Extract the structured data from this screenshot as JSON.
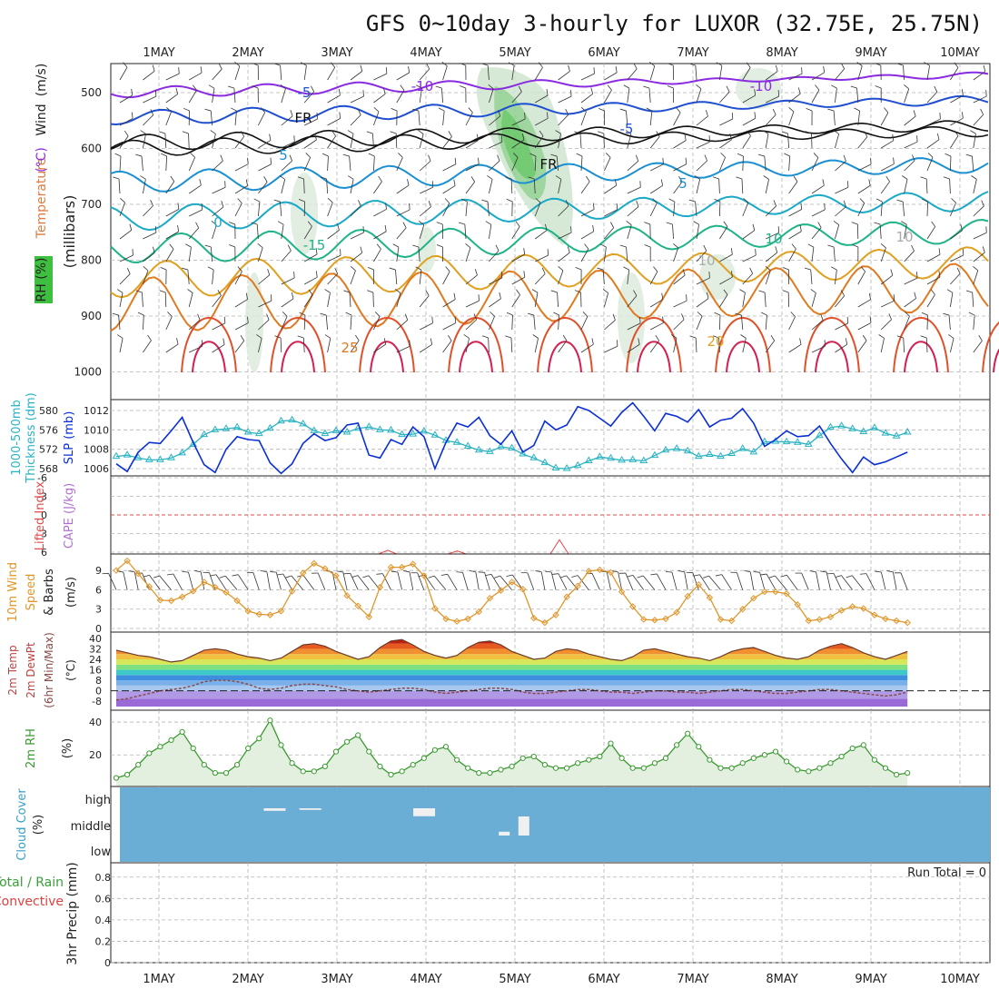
{
  "title": "GFS 0~10day 3-hourly for LUXOR (32.75E, 25.75N)",
  "dates": [
    "1MAY",
    "2MAY",
    "3MAY",
    "4MAY",
    "5MAY",
    "6MAY",
    "7MAY",
    "8MAY",
    "9MAY",
    "10MAY"
  ],
  "colors": {
    "grid": "#b4b4b4",
    "wind_line": "#0a2fd6",
    "thickness": "#2ab3c2",
    "temp_fill_hot": "#d43a16",
    "dewpt": "#8a4a4a",
    "rh_line": "#3a9a30",
    "cloud_bg": "#6aaed6",
    "speed_line": "#e0962a",
    "rh_fill": "#2e8b2e"
  },
  "panels": {
    "upper": {
      "labels": [
        "RH (%)",
        "Temperature",
        "(°C)",
        "Wind",
        "(m/s)"
      ],
      "unit": "(millibars)",
      "ticks": [
        "500",
        "600",
        "700",
        "800",
        "900",
        "1000"
      ],
      "contour_labels": [
        "-10",
        "-10",
        "-5",
        "-5",
        "FR",
        "FR",
        "5",
        "5",
        "0",
        "-15",
        "10",
        "10",
        "10",
        "25",
        "20"
      ],
      "chart_data": {
        "type": "contour",
        "y_axis": "pressure (millibars)",
        "ylim": [
          1000,
          450
        ],
        "isotherms_c": [
          -10,
          -5,
          0,
          5,
          10,
          15,
          20,
          25,
          30
        ],
        "freezing_level_mb_approx": 570
      }
    },
    "thickness": {
      "label_left": [
        "1000-500mb",
        "Thickness (dm)"
      ],
      "label_right": "SLP (mb)",
      "left_ticks": [
        "580",
        "576",
        "572",
        "568"
      ],
      "right_ticks": [
        "1012",
        "1010",
        "1008",
        "1006"
      ],
      "chart_data": {
        "type": "line",
        "series": [
          {
            "name": "1000-500mb Thickness (dm)",
            "unit": "dm",
            "ylim": [
              567,
              580
            ],
            "values": [
              570.5,
              570.8,
              570.2,
              569.8,
              569.8,
              570.2,
              571.2,
              573.0,
              575.0,
              576.0,
              576.2,
              576.5,
              575.5,
              575.2,
              576.3,
              577.8,
              578.0,
              577.2,
              575.8,
              575.2,
              575.8,
              575.5,
              576.3,
              576.6,
              576.0,
              575.9,
              575.0,
              575.1,
              575.7,
              574.9,
              573.8,
              573.4,
              572.6,
              571.8,
              571.5,
              572.5,
              572.2,
              571.0,
              570.2,
              569.2,
              568.1,
              568.0,
              568.6,
              569.6,
              570.4,
              570.1,
              569.7,
              569.8,
              569.6,
              570.7,
              571.8,
              572.1,
              571.6,
              570.5,
              570.9,
              570.5,
              571.1,
              572.1,
              571.4,
              573.5,
              573.6,
              573.5,
              573.4,
              573.0,
              574.8,
              576.5,
              576.8,
              576.2,
              575.6,
              576.4,
              575.3,
              574.7,
              575.5
            ]
          },
          {
            "name": "SLP (mb)",
            "unit": "mb",
            "ylim": [
              1005,
              1013
            ],
            "values": [
              1006.5,
              1005.7,
              1007.7,
              1008.7,
              1008.6,
              1009.9,
              1011.3,
              1008.7,
              1006.4,
              1005.6,
              1008.0,
              1009.3,
              1009.0,
              1008.9,
              1006.6,
              1005.5,
              1006.5,
              1008.6,
              1009.6,
              1008.9,
              1009.2,
              1010.5,
              1010.7,
              1007.4,
              1007.1,
              1009.0,
              1008.5,
              1010.3,
              1009.3,
              1006.0,
              1008.7,
              1010.7,
              1010.3,
              1011.3,
              1009.4,
              1008.5,
              1009.9,
              1007.7,
              1008.4,
              1010.9,
              1010.0,
              1010.5,
              1012.4,
              1012.0,
              1011.2,
              1010.4,
              1011.8,
              1012.8,
              1011.4,
              1009.9,
              1011.7,
              1011.4,
              1010.8,
              1012.1,
              1010.3,
              1011.0,
              1011.2,
              1012.2,
              1010.7,
              1008.3,
              1009.0,
              1009.9,
              1009.3,
              1009.4,
              1010.4,
              1008.6,
              1007.0,
              1005.6,
              1007.2,
              1006.4,
              1006.7,
              1007.2,
              1007.7
            ]
          }
        ]
      }
    },
    "stability": {
      "labels": [
        "Lifted Index",
        "CAPE (J/kg)"
      ],
      "ticks": [
        "-6",
        "-3",
        "0",
        "3",
        "6"
      ],
      "chart_data": {
        "type": "line",
        "ylim": [
          -6,
          6
        ],
        "inverted": true,
        "lifted_index_note": "above +6 (stable) except brief spikes",
        "spikes": [
          {
            "x": 3.57,
            "value": 5.7
          },
          {
            "x": 4.35,
            "value": 5.8
          },
          {
            "x": 5.5,
            "value": 4.0
          }
        ]
      }
    },
    "wind10m": {
      "labels": [
        "10m Wind",
        "Speed",
        "& Barbs",
        "(m/s)"
      ],
      "ticks": [
        "9",
        "6",
        "3",
        "0"
      ],
      "chart_data": {
        "type": "line",
        "unit": "m/s",
        "ylim": [
          0,
          11
        ],
        "speed": [
          9.0,
          10.5,
          8.5,
          6.5,
          4.4,
          4.3,
          4.9,
          5.8,
          7.2,
          6.4,
          5.6,
          4.3,
          2.7,
          2.2,
          2.1,
          2.7,
          5.8,
          8.6,
          10.1,
          9.3,
          8.2,
          5.1,
          3.5,
          1.8,
          6.4,
          9.5,
          9.5,
          10.0,
          8.2,
          3.1,
          1.5,
          1.1,
          1.5,
          2.6,
          4.7,
          5.9,
          7.2,
          6.1,
          1.6,
          0.9,
          2.1,
          4.9,
          6.6,
          8.9,
          9.1,
          8.7,
          5.7,
          3.4,
          1.4,
          1.3,
          1.5,
          2.5,
          5.0,
          6.8,
          4.8,
          1.4,
          1.2,
          3.0,
          4.7,
          5.7,
          5.7,
          5.4,
          3.7,
          1.2,
          1.4,
          1.8,
          2.8,
          3.4,
          3.1,
          2.1,
          1.5,
          1.2,
          0.9
        ]
      }
    },
    "temp2m": {
      "labels": [
        "2m Temp",
        "2m DewPt",
        "(6hr Min/Max)",
        "(°C)"
      ],
      "ticks": [
        "40",
        "32",
        "24",
        "16",
        "8",
        "0",
        "-8"
      ],
      "chart_data": {
        "type": "area",
        "unit": "°C",
        "ylim": [
          -12,
          42
        ],
        "temperature": [
          31,
          29,
          27,
          26,
          24,
          22,
          23,
          27,
          31,
          32,
          31,
          28,
          26,
          25,
          23,
          25,
          30,
          35,
          36,
          34,
          30,
          27,
          24,
          26,
          33,
          38,
          39,
          35,
          30,
          27,
          25,
          27,
          33,
          37,
          38,
          35,
          30,
          27,
          24,
          25,
          30,
          32,
          31,
          28,
          26,
          24,
          23,
          26,
          31,
          32,
          30,
          28,
          26,
          25,
          23,
          26,
          30,
          32,
          33,
          30,
          27,
          25,
          24,
          26,
          31,
          34,
          36,
          33,
          29,
          26,
          24,
          27,
          30
        ],
        "dewpoint": [
          -7,
          -6,
          -4,
          -2,
          0,
          1,
          2,
          4,
          7,
          8,
          8,
          7,
          5,
          2,
          1,
          2,
          4,
          5,
          5,
          4,
          3,
          1,
          0,
          -1,
          0,
          1,
          2,
          2,
          1,
          -1,
          -2,
          -1,
          0,
          1,
          2,
          2,
          1,
          -1,
          -2,
          -2,
          -1,
          0,
          1,
          1,
          0,
          -1,
          -1,
          -2,
          -1,
          0,
          0,
          -1,
          -1,
          -2,
          -1,
          0,
          1,
          1,
          0,
          -1,
          -2,
          -2,
          -1,
          0,
          1,
          1,
          0,
          -1,
          -2,
          -3,
          -4,
          -3,
          -1
        ]
      }
    },
    "rh2m": {
      "labels": [
        "2m RH",
        "(%)"
      ],
      "ticks": [
        "40",
        "20"
      ],
      "chart_data": {
        "type": "area",
        "unit": "%",
        "ylim": [
          3,
          45
        ],
        "values": [
          6,
          8,
          14,
          21,
          25,
          29,
          34,
          24,
          14,
          9,
          9,
          14,
          24,
          30,
          41,
          26,
          15,
          10,
          10,
          13,
          22,
          28,
          32,
          22,
          13,
          8,
          10,
          14,
          18,
          23,
          25,
          17,
          12,
          9,
          9,
          11,
          13,
          18,
          19,
          14,
          12,
          12,
          15,
          17,
          19,
          27,
          18,
          12,
          12,
          15,
          18,
          26,
          33,
          25,
          17,
          12,
          12,
          15,
          18,
          20,
          22,
          16,
          11,
          10,
          12,
          15,
          19,
          24,
          26,
          17,
          12,
          8,
          9
        ]
      }
    },
    "cloud": {
      "labels": [
        "Cloud Cover",
        "(%)"
      ],
      "levels": [
        "high",
        "middle",
        "low"
      ],
      "chart_data": {
        "type": "bar",
        "unit": "%",
        "note": "sky essentially clear; small cloud amounts only",
        "high": [
          {
            "x": 2.3,
            "value": 8
          },
          {
            "x": 2.7,
            "value": 5
          },
          {
            "x": 3.98,
            "value": 25
          }
        ],
        "middle": [
          {
            "x": 4.88,
            "value": 6
          },
          {
            "x": 5.1,
            "value": 30
          }
        ]
      }
    },
    "precip": {
      "labels": [
        "Total / Rain",
        "Convective"
      ],
      "unit": "3hr Precip (mm)",
      "ticks": [
        "0.8",
        "0.6",
        "0.4",
        "0.2",
        "0"
      ],
      "run_total": "Run Total = 0",
      "chart_data": {
        "type": "bar",
        "unit": "mm",
        "ylim": [
          0,
          0.9
        ],
        "values": []
      }
    }
  }
}
